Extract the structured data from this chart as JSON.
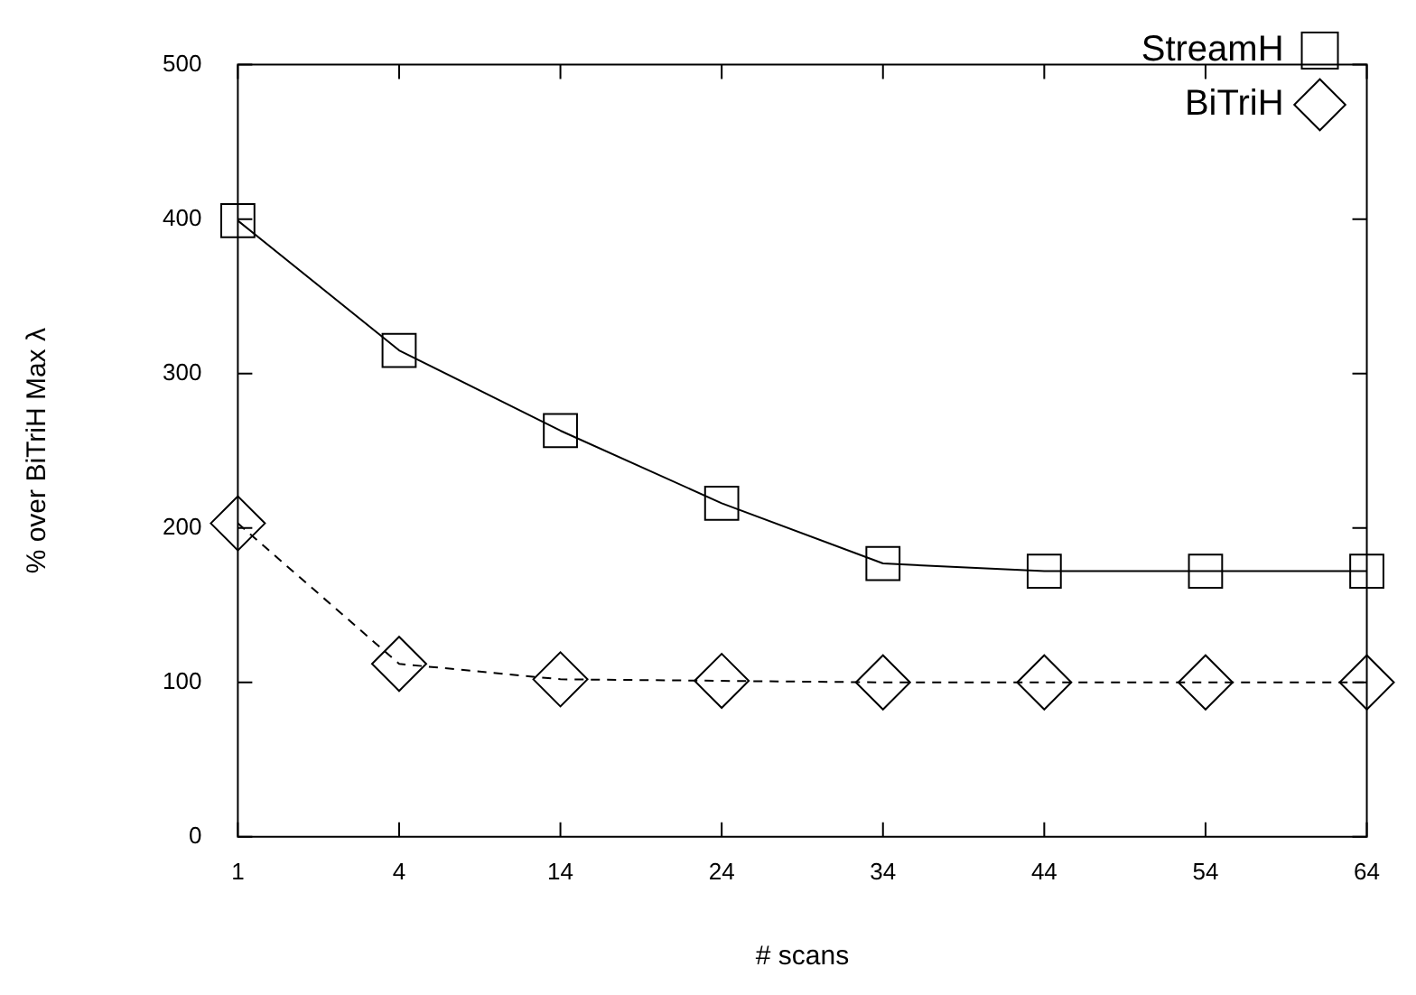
{
  "chart_data": {
    "type": "line",
    "xlabel": "# scans",
    "ylabel": "% over BiTriH Max λ",
    "categories": [
      "1",
      "4",
      "14",
      "24",
      "34",
      "44",
      "54",
      "64"
    ],
    "series": [
      {
        "name": "StreamH",
        "color": "#000000",
        "marker": "square",
        "line_style": "solid",
        "values": [
          399,
          315,
          263,
          216,
          177,
          172,
          172,
          172
        ]
      },
      {
        "name": "BiTriH",
        "color": "#000000",
        "marker": "diamond",
        "line_style": "dashed",
        "values": [
          203,
          112,
          102,
          101,
          100,
          100,
          100,
          100
        ]
      }
    ],
    "ylim": [
      0,
      500
    ],
    "yticks": [
      0,
      100,
      200,
      300,
      400,
      500
    ],
    "grid": false,
    "legend": "top right"
  }
}
